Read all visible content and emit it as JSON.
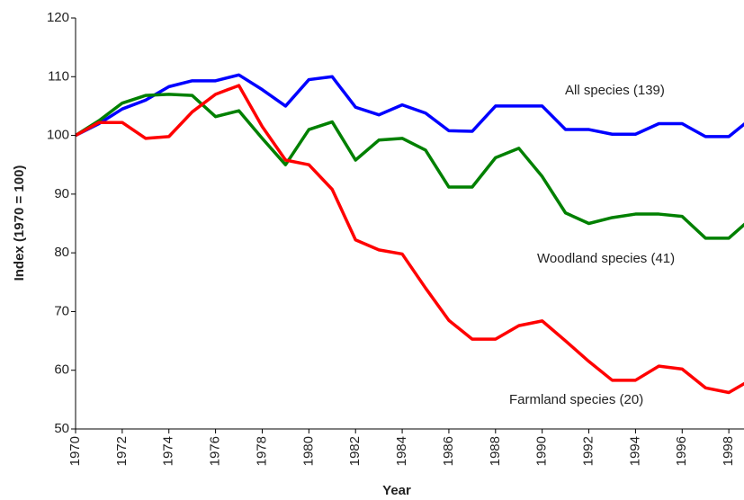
{
  "chart_data": {
    "type": "line",
    "x_label": "Year",
    "y_label": "Index (1970 = 100)",
    "x": [
      1970,
      1971,
      1972,
      1973,
      1974,
      1975,
      1976,
      1977,
      1978,
      1979,
      1980,
      1981,
      1982,
      1983,
      1984,
      1985,
      1986,
      1987,
      1988,
      1989,
      1990,
      1991,
      1992,
      1993,
      1994,
      1995,
      1996,
      1997,
      1998,
      1999
    ],
    "series": [
      {
        "name": "All species (139)",
        "color": "#0000ff",
        "values": [
          100,
          102,
          104.5,
          106,
          108.3,
          109.3,
          109.3,
          110.3,
          107.8,
          105,
          109.5,
          110,
          104.8,
          103.5,
          105.2,
          103.8,
          100.8,
          100.7,
          105,
          105,
          105,
          101,
          101,
          100.2,
          100.2,
          102,
          102,
          99.8,
          99.8,
          103
        ]
      },
      {
        "name": "Woodland species (41)",
        "color": "#008000",
        "values": [
          100,
          102.5,
          105.5,
          106.8,
          107,
          106.8,
          103.2,
          104.2,
          99.5,
          95,
          101,
          102.3,
          95.8,
          99.2,
          99.5,
          97.5,
          91.2,
          91.2,
          96.2,
          97.8,
          93,
          86.8,
          85,
          86,
          86.6,
          86.6,
          86.2,
          82.5,
          82.5,
          86
        ]
      },
      {
        "name": "Farmland species (20)",
        "color": "#ff0000",
        "values": [
          100,
          102.2,
          102.2,
          99.5,
          99.8,
          104,
          107,
          108.5,
          101.5,
          95.8,
          95,
          90.8,
          82.2,
          80.5,
          79.8,
          74,
          68.5,
          65.3,
          65.3,
          67.6,
          68.4,
          65,
          61.5,
          58.3,
          58.3,
          60.7,
          60.2,
          57,
          56.2,
          58.5
        ]
      }
    ],
    "xlim": [
      1970,
      1998.65
    ],
    "xticks": [
      1970,
      1972,
      1974,
      1976,
      1978,
      1980,
      1982,
      1984,
      1986,
      1988,
      1990,
      1992,
      1994,
      1996,
      1998
    ],
    "ylim": [
      50,
      120
    ],
    "yticks": [
      50,
      60,
      70,
      80,
      90,
      100,
      110,
      120
    ]
  }
}
